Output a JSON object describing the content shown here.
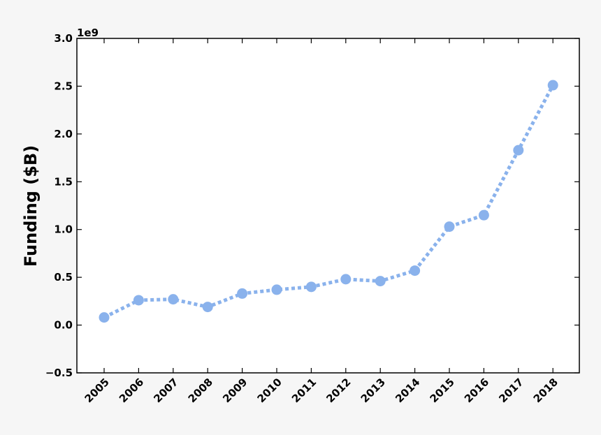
{
  "chart_data": {
    "type": "line",
    "title": "",
    "xlabel": "",
    "ylabel": "Funding ($B)",
    "y_offset_label": "1e9",
    "categories": [
      "2005",
      "2006",
      "2007",
      "2008",
      "2009",
      "2010",
      "2011",
      "2012",
      "2013",
      "2014",
      "2015",
      "2016",
      "2017",
      "2018"
    ],
    "series": [
      {
        "values": [
          0.08,
          0.26,
          0.27,
          0.19,
          0.33,
          0.37,
          0.4,
          0.48,
          0.46,
          0.57,
          1.03,
          1.15,
          1.83,
          2.51
        ],
        "color": "#8ab2ec",
        "line_style": "dotted",
        "marker": "circle"
      }
    ],
    "yticks": [
      "−0.5",
      "0.0",
      "0.5",
      "1.0",
      "1.5",
      "2.0",
      "2.5",
      "3.0"
    ],
    "ylim": [
      -0.5,
      3.0
    ],
    "grid": false,
    "legend": "none"
  }
}
